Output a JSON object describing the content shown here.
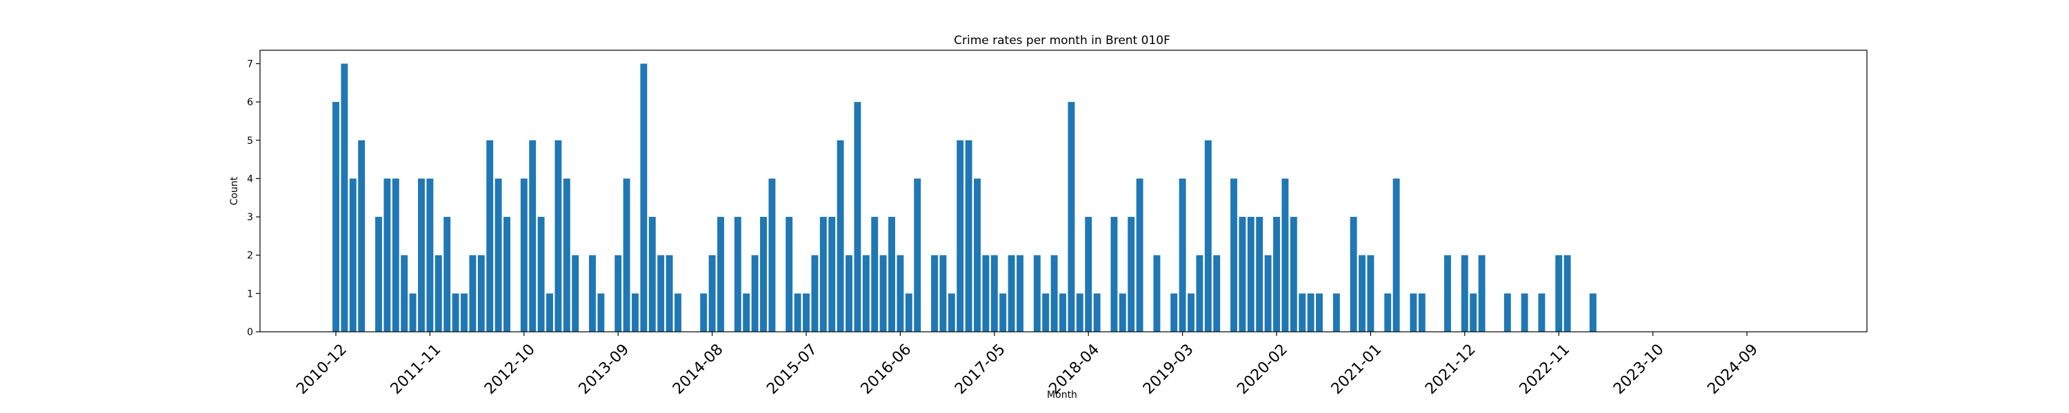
{
  "chart_data": {
    "type": "bar",
    "title": "Crime rates per month in Brent 010F",
    "xlabel": "Month",
    "ylabel": "Count",
    "ylim": [
      0,
      7.35
    ],
    "yticks": [
      0,
      1,
      2,
      3,
      4,
      5,
      6,
      7
    ],
    "xticks": [
      "2010-12",
      "2011-11",
      "2012-10",
      "2013-09",
      "2014-08",
      "2015-07",
      "2016-06",
      "2017-05",
      "2018-04",
      "2019-03",
      "2020-02",
      "2021-01",
      "2021-12",
      "2022-11",
      "2023-10",
      "2024-09"
    ],
    "bar_color": "#1f77b4",
    "grid": false,
    "categories": [
      "2010-12",
      "2011-01",
      "2011-02",
      "2011-03",
      "2011-04",
      "2011-05",
      "2011-06",
      "2011-07",
      "2011-08",
      "2011-09",
      "2011-10",
      "2011-11",
      "2011-12",
      "2012-01",
      "2012-02",
      "2012-03",
      "2012-04",
      "2012-05",
      "2012-06",
      "2012-07",
      "2012-08",
      "2012-09",
      "2012-10",
      "2012-11",
      "2012-12",
      "2013-01",
      "2013-02",
      "2013-03",
      "2013-04",
      "2013-05",
      "2013-06",
      "2013-07",
      "2013-08",
      "2013-09",
      "2013-10",
      "2013-11",
      "2013-12",
      "2014-01",
      "2014-02",
      "2014-03",
      "2014-04",
      "2014-05",
      "2014-06",
      "2014-07",
      "2014-08",
      "2014-09",
      "2014-10",
      "2014-11",
      "2014-12",
      "2015-01",
      "2015-02",
      "2015-03",
      "2015-04",
      "2015-05",
      "2015-06",
      "2015-07",
      "2015-08",
      "2015-09",
      "2015-10",
      "2015-11",
      "2015-12",
      "2016-01",
      "2016-02",
      "2016-03",
      "2016-04",
      "2016-05",
      "2016-06",
      "2016-07",
      "2016-08",
      "2016-09",
      "2016-10",
      "2016-11",
      "2016-12",
      "2017-01",
      "2017-02",
      "2017-03",
      "2017-04",
      "2017-05",
      "2017-06",
      "2017-07",
      "2017-08",
      "2017-09",
      "2017-10",
      "2017-11",
      "2017-12",
      "2018-01",
      "2018-02",
      "2018-03",
      "2018-04",
      "2018-05",
      "2018-06",
      "2018-07",
      "2018-08",
      "2018-09",
      "2018-10",
      "2018-11",
      "2018-12",
      "2019-01",
      "2019-02",
      "2019-03",
      "2019-04",
      "2019-05",
      "2019-06",
      "2019-07",
      "2019-08",
      "2019-09",
      "2019-10",
      "2019-11",
      "2019-12",
      "2020-01",
      "2020-02",
      "2020-03",
      "2020-04",
      "2020-05",
      "2020-06",
      "2020-07",
      "2020-08",
      "2020-09",
      "2020-10",
      "2020-11",
      "2020-12",
      "2021-01",
      "2021-02",
      "2021-03",
      "2021-04",
      "2021-05",
      "2021-06",
      "2021-07",
      "2021-08",
      "2021-09",
      "2021-10",
      "2021-11",
      "2021-12",
      "2022-01",
      "2022-02",
      "2022-03",
      "2022-04",
      "2022-05",
      "2022-06",
      "2022-07",
      "2022-08",
      "2022-09",
      "2022-10",
      "2022-11",
      "2022-12",
      "2023-01",
      "2023-02",
      "2023-03",
      "2023-04",
      "2023-05",
      "2023-06",
      "2023-07",
      "2023-08",
      "2023-09",
      "2023-10",
      "2023-11",
      "2023-12",
      "2024-01",
      "2024-02",
      "2024-03",
      "2024-04",
      "2024-05",
      "2024-06",
      "2024-07",
      "2024-08",
      "2024-09",
      "2024-10",
      "2024-11",
      "2024-12",
      "2025-01",
      "2025-02",
      "2025-03",
      "2025-04",
      "2025-05",
      "2025-06",
      "2025-07",
      "2025-08"
    ],
    "values": [
      6,
      7,
      4,
      5,
      0,
      3,
      4,
      4,
      2,
      1,
      4,
      4,
      2,
      3,
      1,
      1,
      2,
      2,
      5,
      4,
      3,
      0,
      4,
      5,
      3,
      1,
      5,
      4,
      2,
      0,
      2,
      1,
      0,
      2,
      4,
      1,
      7,
      3,
      2,
      2,
      1,
      0,
      0,
      1,
      2,
      3,
      0,
      3,
      1,
      2,
      3,
      4,
      0,
      3,
      1,
      1,
      2,
      3,
      3,
      5,
      2,
      6,
      2,
      3,
      2,
      3,
      2,
      1,
      4,
      0,
      2,
      2,
      1,
      5,
      5,
      4,
      2,
      2,
      1,
      2,
      2,
      0,
      2,
      1,
      2,
      1,
      6,
      1,
      3,
      1,
      0,
      3,
      1,
      3,
      4,
      0,
      2,
      0,
      1,
      4,
      1,
      2,
      5,
      2,
      0,
      4,
      3,
      3,
      3,
      2,
      3,
      4,
      3,
      1,
      1,
      1,
      0,
      1,
      0,
      3,
      2,
      2,
      0,
      1,
      4,
      0,
      1,
      1,
      0,
      0,
      2,
      0,
      2,
      1,
      2,
      0,
      0,
      1,
      0,
      1,
      0,
      1,
      0,
      2,
      2,
      0,
      0,
      1,
      0,
      0,
      0,
      0,
      0,
      0,
      0,
      0,
      0,
      0,
      0,
      0,
      0,
      0,
      0,
      0,
      0,
      0,
      0,
      0,
      0,
      0,
      0,
      0,
      0,
      0,
      0,
      0,
      0
    ]
  }
}
